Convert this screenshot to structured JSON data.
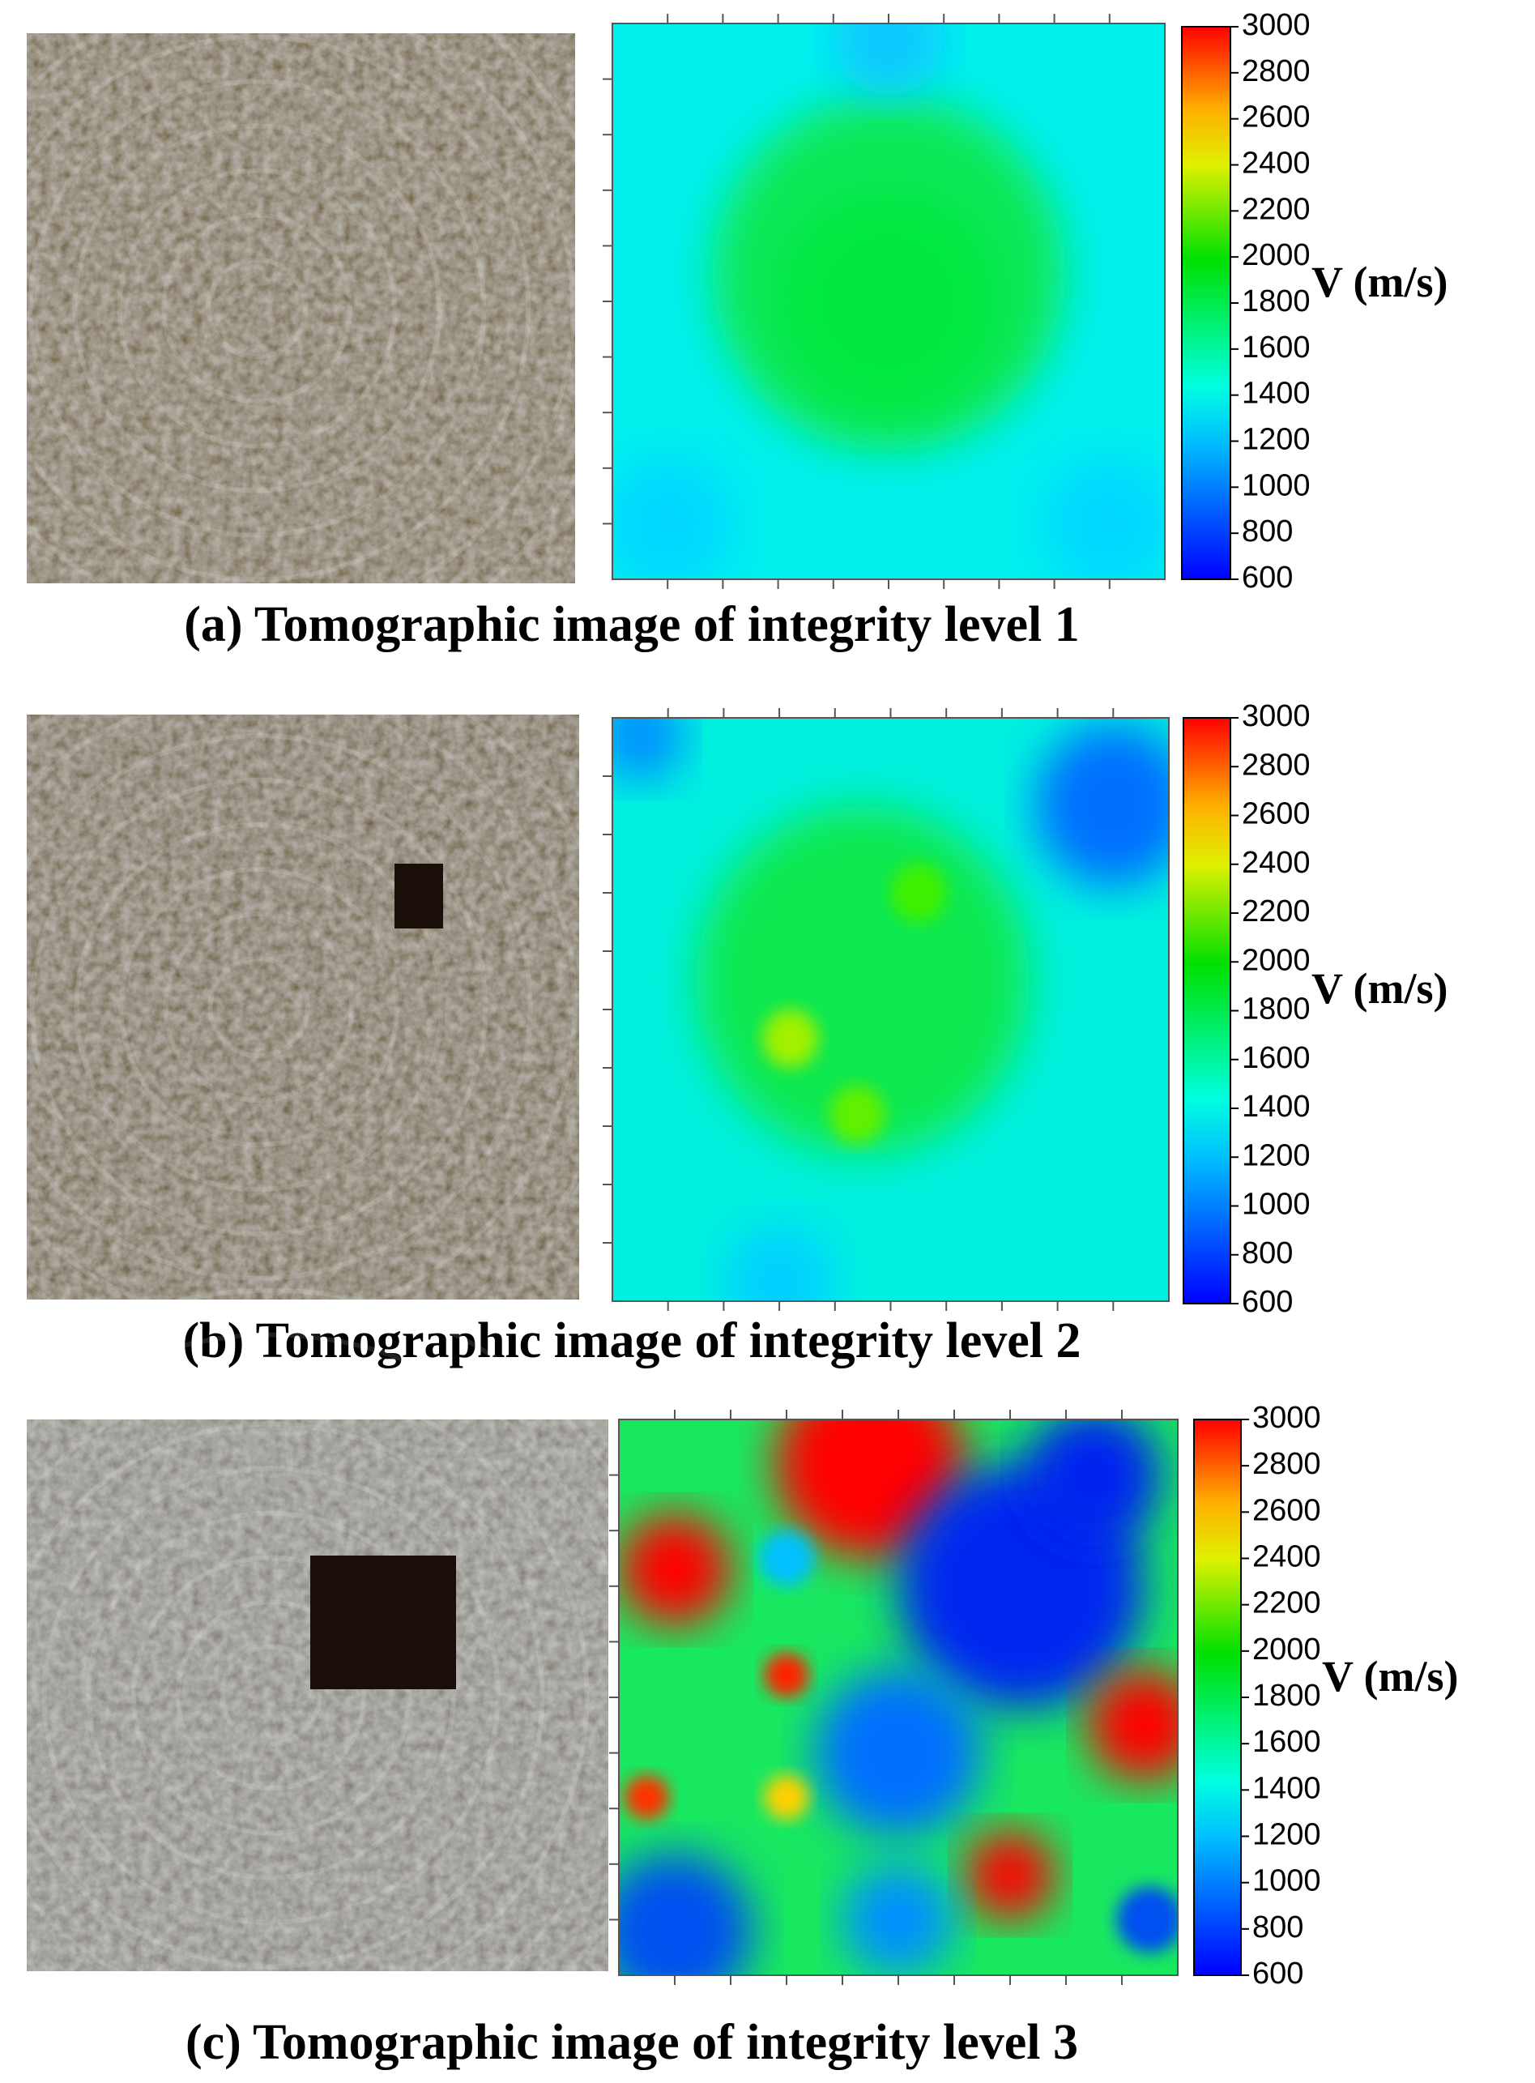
{
  "chart_data": [
    {
      "type": "heatmap",
      "caption": "(a) Tomographic image of integrity level 1",
      "colorbar_label": "V (m/s)",
      "clim": [
        600,
        3000
      ],
      "cticks": [
        600,
        800,
        1000,
        1200,
        1400,
        1600,
        1800,
        2000,
        2200,
        2400,
        2600,
        2800,
        3000
      ]
    },
    {
      "type": "heatmap",
      "caption": "(b) Tomographic image of integrity level 2",
      "colorbar_label": "V (m/s)",
      "clim": [
        600,
        3000
      ],
      "cticks": [
        600,
        800,
        1000,
        1200,
        1400,
        1600,
        1800,
        2000,
        2200,
        2400,
        2600,
        2800,
        3000
      ]
    },
    {
      "type": "heatmap",
      "caption": "(c) Tomographic image of integrity level 3",
      "colorbar_label": "V (m/s)",
      "clim": [
        600,
        3000
      ],
      "cticks": [
        600,
        800,
        1000,
        1200,
        1400,
        1600,
        1800,
        2000,
        2200,
        2400,
        2600,
        2800,
        3000
      ]
    }
  ]
}
